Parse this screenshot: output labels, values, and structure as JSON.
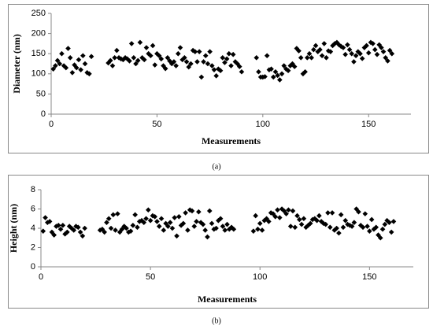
{
  "chart_data": [
    {
      "type": "scatter",
      "caption": "(a)",
      "xlabel": "Measurements",
      "ylabel": "Diameter (nm)",
      "color": "#000000",
      "xlim": [
        0,
        170
      ],
      "ylim": [
        0,
        250
      ],
      "xticks": [
        0,
        50,
        100,
        150
      ],
      "yticks": [
        0,
        50,
        100,
        150,
        200,
        250
      ],
      "x": [
        1,
        2,
        3,
        4,
        5,
        6,
        7,
        8,
        9,
        10,
        11,
        12,
        13,
        14,
        15,
        16,
        17,
        18,
        19,
        27,
        28,
        29,
        30,
        31,
        32,
        33,
        34,
        35,
        36,
        37,
        38,
        39,
        40,
        41,
        42,
        43,
        44,
        45,
        46,
        47,
        48,
        49,
        50,
        51,
        52,
        53,
        54,
        55,
        56,
        57,
        58,
        59,
        60,
        61,
        62,
        63,
        64,
        65,
        66,
        67,
        68,
        69,
        70,
        71,
        72,
        73,
        74,
        75,
        76,
        77,
        78,
        79,
        80,
        81,
        82,
        83,
        84,
        85,
        86,
        87,
        88,
        89,
        90,
        97,
        98,
        99,
        100,
        101,
        102,
        103,
        104,
        105,
        106,
        107,
        108,
        109,
        110,
        111,
        112,
        113,
        114,
        115,
        116,
        117,
        118,
        119,
        120,
        121,
        122,
        123,
        124,
        125,
        126,
        127,
        128,
        129,
        130,
        131,
        132,
        133,
        134,
        135,
        136,
        137,
        138,
        139,
        140,
        141,
        142,
        143,
        144,
        145,
        146,
        147,
        148,
        149,
        150,
        151,
        152,
        153,
        154,
        155,
        156,
        157,
        158,
        159,
        160,
        161
      ],
      "values": [
        112,
        120,
        133,
        125,
        150,
        120,
        115,
        163,
        140,
        103,
        122,
        115,
        135,
        110,
        145,
        125,
        103,
        100,
        143,
        127,
        133,
        120,
        140,
        158,
        140,
        137,
        135,
        140,
        137,
        132,
        175,
        140,
        125,
        133,
        178,
        140,
        135,
        165,
        150,
        145,
        170,
        122,
        150,
        145,
        137,
        120,
        113,
        140,
        132,
        125,
        130,
        120,
        150,
        165,
        135,
        140,
        130,
        117,
        125,
        158,
        155,
        130,
        155,
        92,
        130,
        145,
        125,
        155,
        120,
        110,
        95,
        112,
        108,
        140,
        128,
        137,
        150,
        120,
        148,
        130,
        125,
        118,
        105,
        140,
        105,
        92,
        92,
        93,
        145,
        110,
        112,
        92,
        105,
        96,
        85,
        100,
        120,
        112,
        108,
        120,
        125,
        118,
        163,
        157,
        140,
        100,
        105,
        140,
        150,
        140,
        160,
        170,
        155,
        160,
        145,
        175,
        140,
        157,
        155,
        170,
        175,
        178,
        172,
        168,
        165,
        148,
        172,
        160,
        150,
        130,
        145,
        155,
        150,
        138,
        165,
        170,
        152,
        178,
        175,
        160,
        148,
        172,
        165,
        155,
        140,
        132,
        158,
        150
      ]
    },
    {
      "type": "scatter",
      "caption": "(b)",
      "xlabel": "Measurements",
      "ylabel": "Height (nm)",
      "color": "#000000",
      "xlim": [
        0,
        170
      ],
      "ylim": [
        0,
        8
      ],
      "xticks": [
        0,
        50,
        100,
        150
      ],
      "yticks": [
        0,
        2,
        4,
        6,
        8
      ],
      "x": [
        1,
        2,
        3,
        4,
        5,
        6,
        7,
        8,
        9,
        10,
        11,
        12,
        13,
        14,
        15,
        16,
        17,
        18,
        19,
        20,
        27,
        28,
        29,
        30,
        31,
        32,
        33,
        34,
        35,
        36,
        37,
        38,
        39,
        40,
        41,
        42,
        43,
        44,
        45,
        46,
        47,
        48,
        49,
        50,
        51,
        52,
        53,
        54,
        55,
        56,
        57,
        58,
        59,
        60,
        61,
        62,
        63,
        64,
        65,
        66,
        67,
        68,
        69,
        70,
        71,
        72,
        73,
        74,
        75,
        76,
        77,
        78,
        79,
        80,
        81,
        82,
        83,
        84,
        85,
        86,
        87,
        88,
        97,
        98,
        99,
        100,
        101,
        102,
        103,
        104,
        105,
        106,
        107,
        108,
        109,
        110,
        111,
        112,
        113,
        114,
        115,
        116,
        117,
        118,
        119,
        120,
        121,
        122,
        123,
        124,
        125,
        126,
        127,
        128,
        129,
        130,
        131,
        132,
        133,
        134,
        135,
        136,
        137,
        138,
        139,
        140,
        141,
        142,
        143,
        144,
        145,
        146,
        147,
        148,
        149,
        150,
        151,
        152,
        153,
        154,
        155,
        156,
        157,
        158,
        159,
        160,
        161
      ],
      "values": [
        3.7,
        5.1,
        4.6,
        4.7,
        3.6,
        3.3,
        4.2,
        4.3,
        3.9,
        4.3,
        3.4,
        3.6,
        4.2,
        4.0,
        3.8,
        4.2,
        4.1,
        3.6,
        3.2,
        4.0,
        3.8,
        3.9,
        3.6,
        4.6,
        5.0,
        4.0,
        5.4,
        3.8,
        5.5,
        3.6,
        3.9,
        4.2,
        4.0,
        3.6,
        3.7,
        4.3,
        5.4,
        4.1,
        4.7,
        4.8,
        4.6,
        5.0,
        5.9,
        4.8,
        5.3,
        5.2,
        4.7,
        4.2,
        5.0,
        3.8,
        4.5,
        4.2,
        4.6,
        4.0,
        5.1,
        3.2,
        5.2,
        4.3,
        4.5,
        5.6,
        3.8,
        5.9,
        5.8,
        4.2,
        4.7,
        5.7,
        4.6,
        4.4,
        3.8,
        3.1,
        5.8,
        4.5,
        3.9,
        4.0,
        4.8,
        5.0,
        4.2,
        3.8,
        4.4,
        3.9,
        4.1,
        3.9,
        3.7,
        5.3,
        3.9,
        4.5,
        3.8,
        4.8,
        5.0,
        4.7,
        5.6,
        5.5,
        5.2,
        5.9,
        5.1,
        6.0,
        5.8,
        5.5,
        5.9,
        4.2,
        5.8,
        4.1,
        5.3,
        4.9,
        4.4,
        5.0,
        4.1,
        4.3,
        4.5,
        4.9,
        5.0,
        4.8,
        5.3,
        4.7,
        4.5,
        4.4,
        5.6,
        4.1,
        5.6,
        3.8,
        4.0,
        3.5,
        5.4,
        4.1,
        4.8,
        4.4,
        4.3,
        4.2,
        4.6,
        6.0,
        5.7,
        4.3,
        4.1,
        5.5,
        4.2,
        3.7,
        4.9,
        3.9,
        4.1,
        3.3,
        3.0,
        3.9,
        4.4,
        4.8,
        4.6,
        3.6,
        4.7
      ]
    }
  ]
}
